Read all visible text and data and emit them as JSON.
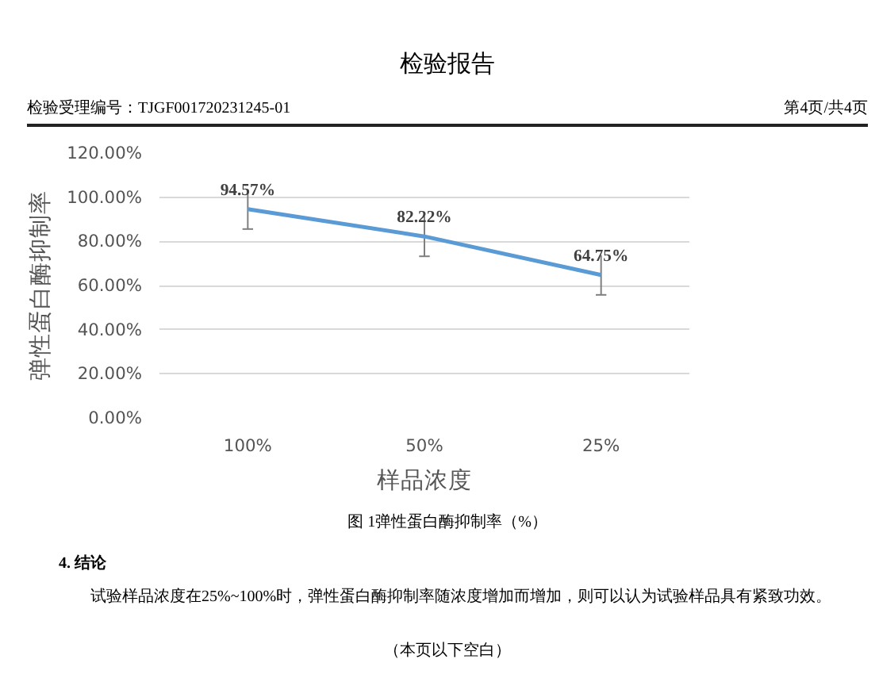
{
  "chart_data": {
    "type": "line",
    "title": "检验报告",
    "xlabel": "样品浓度",
    "ylabel": "弹性蛋白酶抑制率",
    "categories": [
      "100%",
      "50%",
      "25%"
    ],
    "series": [
      {
        "color": "#5b9bd5",
        "values": [
          94.57,
          82.22,
          64.75
        ],
        "errors": [
          9,
          9,
          9
        ],
        "value_labels": [
          "94.57%",
          "82.22%",
          "64.75%"
        ]
      }
    ],
    "ylim": [
      0,
      120
    ],
    "yticks": [
      {
        "value": 0,
        "label": "0.00%"
      },
      {
        "value": 20,
        "label": "20.00%"
      },
      {
        "value": 40,
        "label": "40.00%"
      },
      {
        "value": 60,
        "label": "60.00%"
      },
      {
        "value": 80,
        "label": "80.00%"
      },
      {
        "value": 100,
        "label": "100.00%"
      },
      {
        "value": 120,
        "label": "120.00%"
      }
    ],
    "grid": "y",
    "marker": "none",
    "line_style": "solid",
    "annotations": [
      "检验受理编号：TJGF001720231245-01",
      "第4页/共4页",
      "图 1弹性蛋白酶抑制率（%）",
      "4. 结论",
      "试验样品浓度在25%~100%时，弹性蛋白酶抑制率随浓度增加而增加，则可以认为试验样品具有紧致功效。",
      "（本页以下空白）"
    ]
  }
}
